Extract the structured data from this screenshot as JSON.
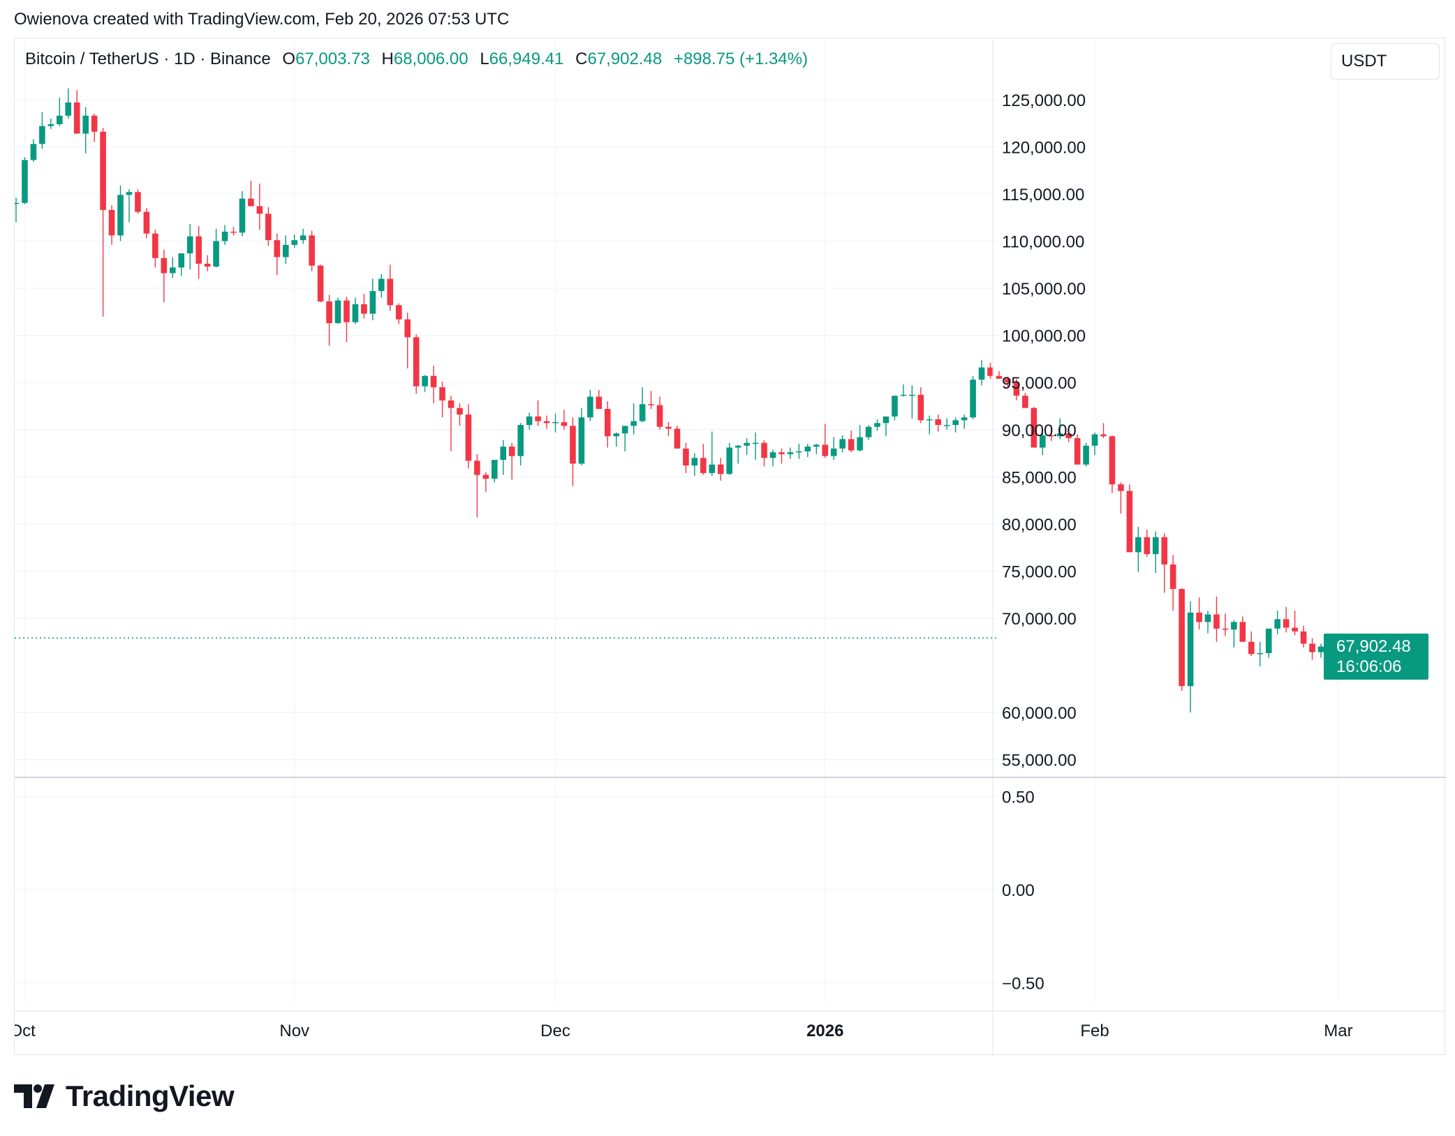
{
  "header": {
    "caption": "Owienova created with TradingView.com, Feb 20, 2026 07:53 UTC"
  },
  "legend": {
    "symbol": "Bitcoin / TetherUS · 1D · Binance",
    "open_label": "O",
    "open": "67,003.73",
    "high_label": "H",
    "high": "68,006.00",
    "low_label": "L",
    "low": "66,949.41",
    "close_label": "C",
    "close": "67,902.48",
    "change": "+898.75 (+1.34%)"
  },
  "currency": "USDT",
  "last_price": {
    "price": "67,902.48",
    "countdown": "16:06:06"
  },
  "logo": {
    "text": "TradingView",
    "icon": "tradingview-logo-icon"
  },
  "colors": {
    "up": "#089981",
    "down": "#f23645",
    "grid": "#f0f3fa",
    "axis_text": "#131722"
  },
  "chart_data": [
    {
      "type": "candlestick",
      "symbol": "Bitcoin / TetherUS",
      "interval": "1D",
      "exchange": "Binance",
      "x_axis_labels": [
        "Oct",
        "Nov",
        "Dec",
        "2026",
        "Feb",
        "Mar"
      ],
      "y_axis_labels": [
        "125,000.00",
        "120,000.00",
        "115,000.00",
        "110,000.00",
        "105,000.00",
        "100,000.00",
        "95,000.00",
        "90,000.00",
        "85,000.00",
        "80,000.00",
        "75,000.00",
        "70,000.00",
        "60,000.00",
        "55,000.00"
      ],
      "ylim": [
        53200,
        131500
      ],
      "grid": true,
      "last_price": 67902.48,
      "x_start": "2025-09-30",
      "candles": [
        [
          114000,
          114600,
          112000,
          114050
        ],
        [
          114050,
          118900,
          113900,
          118600
        ],
        [
          118600,
          120800,
          118400,
          120300
        ],
        [
          120300,
          123700,
          119800,
          122200
        ],
        [
          122200,
          123000,
          121900,
          122400
        ],
        [
          122400,
          125200,
          122200,
          123300
        ],
        [
          123300,
          126200,
          123000,
          124700
        ],
        [
          124700,
          126000,
          121400,
          121400
        ],
        [
          121400,
          124200,
          119300,
          123300
        ],
        [
          123300,
          123500,
          120500,
          121600
        ],
        [
          121600,
          122000,
          102000,
          113300
        ],
        [
          113300,
          113800,
          109600,
          110600
        ],
        [
          110600,
          115900,
          110000,
          114900
        ],
        [
          114900,
          115500,
          112000,
          115200
        ],
        [
          115200,
          115500,
          112900,
          113100
        ],
        [
          113100,
          113500,
          110300,
          110800
        ],
        [
          110800,
          111200,
          107200,
          108200
        ],
        [
          108200,
          109100,
          103500,
          106600
        ],
        [
          106600,
          108300,
          106100,
          107200
        ],
        [
          107200,
          108700,
          106300,
          108700
        ],
        [
          108700,
          111800,
          107000,
          110500
        ],
        [
          110500,
          111600,
          106000,
          107600
        ],
        [
          107600,
          108500,
          106800,
          107300
        ],
        [
          107300,
          111300,
          107200,
          110000
        ],
        [
          110000,
          111700,
          109600,
          111000
        ],
        [
          111000,
          111500,
          110600,
          110900
        ],
        [
          110900,
          115300,
          110500,
          114500
        ],
        [
          114500,
          116400,
          113800,
          113700
        ],
        [
          113700,
          116100,
          111200,
          112900
        ],
        [
          112900,
          113600,
          109500,
          110100
        ],
        [
          110100,
          110800,
          106400,
          108300
        ],
        [
          108300,
          110600,
          107600,
          109600
        ],
        [
          109600,
          110700,
          109300,
          110100
        ],
        [
          110100,
          111300,
          109700,
          110600
        ],
        [
          110600,
          111100,
          106800,
          107400
        ],
        [
          107400,
          107500,
          103500,
          103600
        ],
        [
          103600,
          104300,
          98900,
          101300
        ],
        [
          101300,
          104000,
          101200,
          103700
        ],
        [
          103700,
          104100,
          99300,
          101400
        ],
        [
          101400,
          104000,
          101200,
          103300
        ],
        [
          103300,
          104400,
          101800,
          102300
        ],
        [
          102300,
          106000,
          101600,
          104700
        ],
        [
          104700,
          106500,
          104000,
          106000
        ],
        [
          106000,
          107500,
          102600,
          103200
        ],
        [
          103200,
          103400,
          101200,
          101700
        ],
        [
          101700,
          102400,
          96500,
          99800
        ],
        [
          99800,
          100100,
          93800,
          94600
        ],
        [
          94600,
          95800,
          94000,
          95700
        ],
        [
          95700,
          96800,
          92800,
          94500
        ],
        [
          94500,
          95100,
          91300,
          93100
        ],
        [
          93100,
          93600,
          87700,
          92300
        ],
        [
          92300,
          92800,
          90400,
          91600
        ],
        [
          91600,
          92700,
          85900,
          86700
        ],
        [
          86700,
          87400,
          80700,
          85200
        ],
        [
          85200,
          85500,
          83400,
          84800
        ],
        [
          84800,
          86100,
          84400,
          86800
        ],
        [
          86800,
          88900,
          85200,
          88200
        ],
        [
          88200,
          88600,
          84700,
          87200
        ],
        [
          87200,
          90700,
          86200,
          90500
        ],
        [
          90500,
          91800,
          90000,
          91400
        ],
        [
          91400,
          93100,
          90400,
          90900
        ],
        [
          90900,
          91500,
          90100,
          90700
        ],
        [
          90700,
          91700,
          89700,
          90800
        ],
        [
          90800,
          92100,
          90000,
          90400
        ],
        [
          90400,
          91300,
          84000,
          86400
        ],
        [
          86400,
          92300,
          86200,
          91300
        ],
        [
          91300,
          94200,
          90900,
          93500
        ],
        [
          93500,
          94200,
          92300,
          92200
        ],
        [
          92200,
          93000,
          88100,
          89300
        ],
        [
          89300,
          89700,
          88200,
          89600
        ],
        [
          89600,
          90300,
          87700,
          90400
        ],
        [
          90400,
          92800,
          89500,
          90900
        ],
        [
          90900,
          94500,
          90800,
          92700
        ],
        [
          92700,
          94100,
          92200,
          92600
        ],
        [
          92600,
          93500,
          90000,
          90300
        ],
        [
          90300,
          90800,
          89300,
          90100
        ],
        [
          90100,
          90400,
          88300,
          88000
        ],
        [
          88000,
          88600,
          85400,
          86200
        ],
        [
          86200,
          87500,
          85100,
          87000
        ],
        [
          87000,
          88500,
          85200,
          85400
        ],
        [
          85400,
          89800,
          85100,
          86300
        ],
        [
          86300,
          87000,
          84600,
          85300
        ],
        [
          85300,
          88600,
          85200,
          88100
        ],
        [
          88100,
          88400,
          86400,
          88300
        ],
        [
          88300,
          89100,
          87300,
          88600
        ],
        [
          88600,
          89700,
          86800,
          88600
        ],
        [
          88600,
          88900,
          86100,
          87000
        ],
        [
          87000,
          87900,
          86100,
          87600
        ],
        [
          87600,
          88000,
          86400,
          87400
        ],
        [
          87400,
          88100,
          86900,
          87600
        ],
        [
          87600,
          88500,
          86900,
          87700
        ],
        [
          87700,
          88500,
          87100,
          88200
        ],
        [
          88200,
          88500,
          87400,
          88400
        ],
        [
          88400,
          90600,
          87000,
          87200
        ],
        [
          87200,
          89200,
          86800,
          88000
        ],
        [
          88000,
          89400,
          87600,
          89000
        ],
        [
          89000,
          89900,
          87600,
          87800
        ],
        [
          87800,
          90500,
          87700,
          89200
        ],
        [
          89200,
          90500,
          88900,
          90300
        ],
        [
          90300,
          91100,
          89900,
          90700
        ],
        [
          90700,
          91200,
          89300,
          91400
        ],
        [
          91400,
          93600,
          91000,
          93600
        ],
        [
          93600,
          94800,
          93500,
          93700
        ],
        [
          93700,
          94700,
          91200,
          93700
        ],
        [
          93700,
          94500,
          90700,
          91000
        ],
        [
          91000,
          91500,
          89500,
          91100
        ],
        [
          91100,
          91600,
          89800,
          90500
        ],
        [
          90500,
          91200,
          90000,
          90500
        ],
        [
          90500,
          91300,
          89700,
          91000
        ],
        [
          91000,
          91600,
          90100,
          91300
        ],
        [
          91300,
          95700,
          91100,
          95300
        ],
        [
          95300,
          97400,
          94700,
          96600
        ],
        [
          96600,
          97100,
          95400,
          95700
        ],
        [
          95700,
          96200,
          95400,
          95400
        ],
        [
          95400,
          95600,
          94400,
          95000
        ],
        [
          95000,
          95400,
          93100,
          93600
        ],
        [
          93600,
          93900,
          92600,
          92300
        ],
        [
          92300,
          92400,
          88100,
          88100
        ],
        [
          88100,
          89800,
          87300,
          89400
        ],
        [
          89400,
          90500,
          88800,
          89300
        ],
        [
          89300,
          91200,
          89000,
          89600
        ],
        [
          89600,
          90000,
          88700,
          89100
        ],
        [
          89100,
          89500,
          86300,
          86300
        ],
        [
          86300,
          88600,
          86100,
          88300
        ],
        [
          88300,
          89700,
          87300,
          89500
        ],
        [
          89500,
          90700,
          89100,
          89300
        ],
        [
          89300,
          89400,
          83300,
          84200
        ],
        [
          84200,
          84400,
          81100,
          83500
        ],
        [
          83500,
          84200,
          77400,
          77000
        ],
        [
          77000,
          79700,
          74900,
          78600
        ],
        [
          78600,
          79400,
          76500,
          76800
        ],
        [
          76800,
          79200,
          74800,
          78600
        ],
        [
          78600,
          79000,
          72700,
          75700
        ],
        [
          75700,
          76700,
          70800,
          73100
        ],
        [
          73100,
          73200,
          62300,
          62800
        ],
        [
          62800,
          71800,
          60000,
          70600
        ],
        [
          70600,
          72200,
          68800,
          69600
        ],
        [
          69600,
          70800,
          68400,
          70400
        ],
        [
          70400,
          72300,
          67500,
          68900
        ],
        [
          68900,
          70500,
          68100,
          68800
        ],
        [
          68800,
          69800,
          66900,
          69600
        ],
        [
          69600,
          70200,
          67600,
          67500
        ],
        [
          67500,
          68600,
          66000,
          66200
        ],
        [
          66200,
          67500,
          64900,
          66300
        ],
        [
          66300,
          68700,
          65800,
          68900
        ],
        [
          68900,
          70800,
          68300,
          69900
        ],
        [
          69900,
          71200,
          68500,
          69000
        ],
        [
          69000,
          70800,
          68200,
          68600
        ],
        [
          68600,
          69200,
          66900,
          67300
        ],
        [
          67300,
          67900,
          65600,
          66400
        ],
        [
          66400,
          67300,
          65800,
          67000
        ],
        [
          67003.73,
          68006,
          66949.41,
          67902.48
        ]
      ]
    },
    {
      "type": "line",
      "series": [],
      "y_axis_labels": [
        "0.50",
        "0.00",
        "−0.50"
      ],
      "ylim": [
        -0.6,
        0.6
      ],
      "x_axis_labels": [
        "Oct",
        "Nov",
        "Dec",
        "2026",
        "Feb",
        "Mar"
      ],
      "grid": true
    }
  ]
}
